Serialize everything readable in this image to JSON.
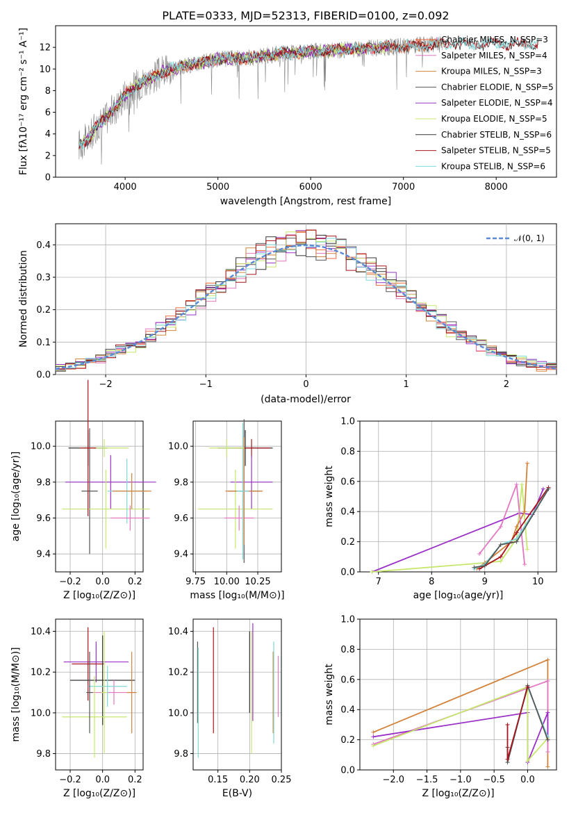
{
  "chart_data": [
    {
      "type": "line",
      "title": "PLATE=0333, MJD=52313, FIBERID=0100, z=0.092",
      "xlabel": "wavelength [Angstrom, rest frame]",
      "ylabel": "Flux [fλ10⁻¹⁷ erg cm⁻² s⁻¹ A⁻¹]",
      "xlim": [
        3250,
        8650
      ],
      "ylim": [
        0,
        14
      ],
      "xticks": [
        "4000",
        "5000",
        "6000",
        "7000",
        "8000"
      ],
      "yticks": [
        "0",
        "2",
        "4",
        "6",
        "8",
        "10",
        "12"
      ],
      "legend_position": "upper-right",
      "spectrum_points": {
        "x": [
          3500,
          3600,
          3700,
          3800,
          3900,
          4000,
          4100,
          4200,
          4300,
          4400,
          4500,
          4600,
          4700,
          4800,
          4900,
          5000,
          5200,
          5400,
          5600,
          5800,
          6000,
          6200,
          6400,
          6600,
          6800,
          7000,
          7200,
          7400
        ],
        "y": [
          3.0,
          3.5,
          4.8,
          5.5,
          6.5,
          7.6,
          8.3,
          8.9,
          9.2,
          9.7,
          10.0,
          10.2,
          10.4,
          10.5,
          10.7,
          10.9,
          11.0,
          11.1,
          11.3,
          11.5,
          11.6,
          11.7,
          11.8,
          11.9,
          12.0,
          12.1,
          12.2,
          12.3
        ]
      },
      "series": [
        {
          "name": "Chabrier MILES, N_SSP=3",
          "color": "#ee6a3c",
          "lw": 1
        },
        {
          "name": "Salpeter MILES, N_SSP=4",
          "color": "#e377c2",
          "lw": 1
        },
        {
          "name": "Kroupa MILES, N_SSP=3",
          "color": "#d2823a",
          "lw": 1
        },
        {
          "name": "Chabrier ELODIE, N_SSP=5",
          "color": "#555555",
          "lw": 0.6
        },
        {
          "name": "Salpeter ELODIE, N_SSP=4",
          "color": "#9b30c8",
          "lw": 1
        },
        {
          "name": "Kroupa ELODIE, N_SSP=5",
          "color": "#c5e86c",
          "lw": 1
        },
        {
          "name": "Chabrier STELIB, N_SSP=6",
          "color": "#333333",
          "lw": 0.8
        },
        {
          "name": "Salpeter STELIB, N_SSP=5",
          "color": "#a8141c",
          "lw": 1
        },
        {
          "name": "Kroupa STELIB, N_SSP=6",
          "color": "#7fd7d7",
          "lw": 1
        }
      ]
    },
    {
      "type": "line",
      "xlabel": "(data-model)/error",
      "ylabel": "Normed distribution",
      "xlim": [
        -2.5,
        2.5
      ],
      "ylim": [
        0,
        0.465
      ],
      "xticks": [
        "−2",
        "−1",
        "0",
        "1",
        "2"
      ],
      "yticks": [
        "0.0",
        "0.1",
        "0.2",
        "0.3",
        "0.4"
      ],
      "legend": "𝒩(0, 1)",
      "legend_position": "upper-right"
    },
    {
      "type": "scatter",
      "xlabel": "Z [log₁₀(Z/Z⊙)]",
      "ylabel": "age  [log₁₀(age/yr)]",
      "xlim": [
        -0.29,
        0.25
      ],
      "ylim": [
        9.3,
        10.14
      ],
      "xticks": [
        "−0.2",
        "0.0",
        "0.2"
      ],
      "yticks": [
        "9.4",
        "9.6",
        "9.8",
        "10.0"
      ],
      "points": [
        {
          "x": -0.09,
          "y": 9.99,
          "xerr": 0.12,
          "yerr": 0.1,
          "color": "#333333"
        },
        {
          "x": -0.08,
          "y": 9.75,
          "xerr": 0.05,
          "yerr": 0.35,
          "color": "#555555"
        },
        {
          "x": 0.05,
          "y": 9.8,
          "xerr": 0.28,
          "yerr": 0.15,
          "color": "#9b30c8"
        },
        {
          "x": 0.02,
          "y": 9.65,
          "xerr": 0.27,
          "yerr": 0.22,
          "color": "#c5e86c"
        },
        {
          "x": 0.01,
          "y": 9.99,
          "xerr": 0.15,
          "yerr": 0.05,
          "color": "#c5e86c"
        },
        {
          "x": 0.15,
          "y": 9.75,
          "xerr": 0.12,
          "yerr": 0.18,
          "color": "#7fd7d7"
        },
        {
          "x": 0.18,
          "y": 9.75,
          "xerr": 0.12,
          "yerr": 0.1,
          "color": "#d2823a"
        },
        {
          "x": 0.17,
          "y": 9.6,
          "xerr": 0.12,
          "yerr": 0.07,
          "color": "#e377c2"
        },
        {
          "x": -0.09,
          "y": 9.99,
          "xerr": 0.05,
          "yerr": 0.38,
          "color": "#a8141c"
        }
      ]
    },
    {
      "type": "scatter",
      "xlabel": "mass [log₁₀(M/M⊙)]",
      "xlim": [
        9.73,
        10.44
      ],
      "ylim": [
        9.3,
        10.14
      ],
      "xticks": [
        "9.75",
        "10.00",
        "10.25"
      ],
      "yticks": [
        "9.4",
        "9.6",
        "9.8",
        "10.0"
      ],
      "points": [
        {
          "x": 10.15,
          "y": 9.99,
          "xerr": 0.22,
          "yerr": 0.1,
          "color": "#333333"
        },
        {
          "x": 10.2,
          "y": 9.99,
          "xerr": 0.15,
          "yerr": 0.05,
          "color": "#a8141c"
        },
        {
          "x": 10.2,
          "y": 9.8,
          "xerr": 0.17,
          "yerr": 0.15,
          "color": "#9b30c8"
        },
        {
          "x": 10.07,
          "y": 9.65,
          "xerr": 0.3,
          "yerr": 0.22,
          "color": "#c5e86c"
        },
        {
          "x": 10.14,
          "y": 9.75,
          "xerr": 0.13,
          "yerr": 0.4,
          "color": "#555555"
        },
        {
          "x": 10.1,
          "y": 9.6,
          "xerr": 0.12,
          "yerr": 0.07,
          "color": "#e377c2"
        },
        {
          "x": 10.14,
          "y": 9.75,
          "xerr": 0.15,
          "yerr": 0.3,
          "color": "#d2823a"
        },
        {
          "x": 10.13,
          "y": 9.75,
          "xerr": 0.05,
          "yerr": 0.38,
          "color": "#7fd7d7"
        },
        {
          "x": 10.0,
          "y": 9.99,
          "xerr": 0.14,
          "yerr": 0.05,
          "color": "#c5e86c"
        }
      ]
    },
    {
      "type": "line",
      "xlabel": "age  [log₁₀(age/yr)]",
      "ylabel": "mass weight",
      "xlim": [
        6.65,
        10.35
      ],
      "ylim": [
        0,
        1.0
      ],
      "xticks": [
        "7",
        "8",
        "9",
        "10"
      ],
      "yticks": [
        "0.0",
        "0.2",
        "0.4",
        "0.6",
        "0.8",
        "1.0"
      ],
      "series": [
        {
          "color": "#9b30c8",
          "x": [
            6.88,
            9.65,
            9.9,
            10.1
          ],
          "y": [
            0.0,
            0.39,
            0.38,
            0.55
          ]
        },
        {
          "color": "#c5e86c",
          "x": [
            6.88,
            9.0,
            9.3,
            9.6,
            9.7,
            9.8
          ],
          "y": [
            0.0,
            0.06,
            0.07,
            0.22,
            0.58,
            0.15
          ]
        },
        {
          "color": "#d2823a",
          "x": [
            8.85,
            9.0,
            9.5,
            9.6,
            9.75,
            9.8
          ],
          "y": [
            0.02,
            0.06,
            0.2,
            0.3,
            0.4,
            0.72
          ]
        },
        {
          "color": "#e377c2",
          "x": [
            8.9,
            9.3,
            9.6,
            9.75
          ],
          "y": [
            0.12,
            0.3,
            0.58,
            0.05
          ]
        },
        {
          "color": "#a8141c",
          "x": [
            8.9,
            9.3,
            9.6,
            10.2
          ],
          "y": [
            0.02,
            0.1,
            0.26,
            0.56
          ]
        },
        {
          "color": "#7fd7d7",
          "x": [
            8.8,
            9.0,
            9.3,
            9.6,
            10.2
          ],
          "y": [
            0.02,
            0.05,
            0.18,
            0.22,
            0.55
          ]
        },
        {
          "color": "#555555",
          "x": [
            8.8,
            9.0,
            9.3,
            9.6,
            10.2
          ],
          "y": [
            0.03,
            0.04,
            0.18,
            0.2,
            0.55
          ]
        }
      ]
    },
    {
      "type": "scatter",
      "ylabel": "mass [log₁₀(M/M⊙)]",
      "xlabel": "Z [log₁₀(Z/Z⊙)]",
      "xlim": [
        -0.29,
        0.25
      ],
      "ylim": [
        9.72,
        10.46
      ],
      "xticks": [
        "−0.2",
        "0.0",
        "0.2"
      ],
      "yticks": [
        "9.8",
        "10.0",
        "10.2",
        "10.4"
      ],
      "points": [
        {
          "x": -0.04,
          "y": 10.25,
          "xerr": 0.2,
          "yerr": 0.1,
          "color": "#9b30c8"
        },
        {
          "x": -0.09,
          "y": 10.24,
          "xerr": 0.1,
          "yerr": 0.18,
          "color": "#a8141c"
        },
        {
          "x": 0.0,
          "y": 10.16,
          "xerr": 0.2,
          "yerr": 0.22,
          "color": "#333333"
        },
        {
          "x": 0.07,
          "y": 10.1,
          "xerr": 0.13,
          "yerr": 0.06,
          "color": "#e377c2"
        },
        {
          "x": 0.03,
          "y": 10.13,
          "xerr": 0.12,
          "yerr": 0.1,
          "color": "#7fd7d7"
        },
        {
          "x": -0.05,
          "y": 9.98,
          "xerr": 0.2,
          "yerr": 0.2,
          "color": "#c5e86c"
        },
        {
          "x": 0.18,
          "y": 10.1,
          "xerr": 0.03,
          "yerr": 0.2,
          "color": "#d2823a"
        },
        {
          "x": -0.08,
          "y": 10.1,
          "xerr": 0.02,
          "yerr": 0.2,
          "color": "#555555"
        },
        {
          "x": 0.01,
          "y": 10.1,
          "xerr": 0.02,
          "yerr": 0.3,
          "color": "#c5e86c"
        }
      ]
    },
    {
      "type": "scatter",
      "xlabel": "E(B-V)",
      "xlim": [
        0.111,
        0.25
      ],
      "ylim": [
        9.72,
        10.46
      ],
      "xticks": [
        "0.15",
        "0.20",
        "0.25"
      ],
      "yticks": [
        "9.8",
        "10.0",
        "10.2",
        "10.4"
      ],
      "points": [
        {
          "x": 0.118,
          "y": 10.15,
          "yerr": 0.2,
          "color": "#555555"
        },
        {
          "x": 0.119,
          "y": 10.05,
          "yerr": 0.27,
          "color": "#7fd7d7"
        },
        {
          "x": 0.143,
          "y": 10.16,
          "yerr": 0.26,
          "color": "#a8141c"
        },
        {
          "x": 0.2,
          "y": 10.2,
          "yerr": 0.2,
          "color": "#333333"
        },
        {
          "x": 0.205,
          "y": 10.2,
          "yerr": 0.24,
          "color": "#9b30c8"
        },
        {
          "x": 0.203,
          "y": 10.1,
          "yerr": 0.3,
          "color": "#c5e86c"
        },
        {
          "x": 0.237,
          "y": 10.1,
          "yerr": 0.2,
          "color": "#d2823a"
        },
        {
          "x": 0.238,
          "y": 10.1,
          "yerr": 0.25,
          "color": "#7fd7d7"
        },
        {
          "x": 0.245,
          "y": 10.13,
          "yerr": 0.15,
          "color": "#e377c2"
        }
      ]
    },
    {
      "type": "line",
      "xlabel": "Z [log₁₀(Z/Z⊙)]",
      "ylabel": "mass weight",
      "xlim": [
        -2.5,
        0.43
      ],
      "ylim": [
        0,
        1.0
      ],
      "xticks": [
        "−2.0",
        "−1.5",
        "−1.0",
        "−0.5",
        "0.0"
      ],
      "yticks": [
        "0.0",
        "0.2",
        "0.4",
        "0.6",
        "0.8",
        "1.0"
      ],
      "series": [
        {
          "color": "#d2823a",
          "x": [
            -2.3,
            0.3,
            0.3
          ],
          "y": [
            0.25,
            0.73,
            0.02
          ]
        },
        {
          "color": "#e377c2",
          "x": [
            -2.3,
            0.3,
            0.3
          ],
          "y": [
            0.17,
            0.59,
            0.12
          ]
        },
        {
          "color": "#9b30c8",
          "x": [
            -2.3,
            0.0,
            0.0,
            0.3,
            0.3
          ],
          "y": [
            0.22,
            0.38,
            0.05,
            0.38,
            0.2
          ]
        },
        {
          "color": "#c5e86c",
          "x": [
            -2.3,
            0.0,
            0.0,
            0.3
          ],
          "y": [
            0.16,
            0.55,
            0.06,
            0.21
          ]
        },
        {
          "color": "#7fd7d7",
          "x": [
            -0.3,
            0.0,
            0.3
          ],
          "y": [
            0.05,
            0.55,
            0.22
          ]
        },
        {
          "color": "#555555",
          "x": [
            -0.3,
            -0.3,
            0.0,
            0.3
          ],
          "y": [
            0.15,
            0.05,
            0.56,
            0.2
          ]
        },
        {
          "color": "#a8141c",
          "x": [
            -0.3,
            -0.3,
            0.0
          ],
          "y": [
            0.3,
            0.07,
            0.55
          ]
        }
      ]
    }
  ]
}
